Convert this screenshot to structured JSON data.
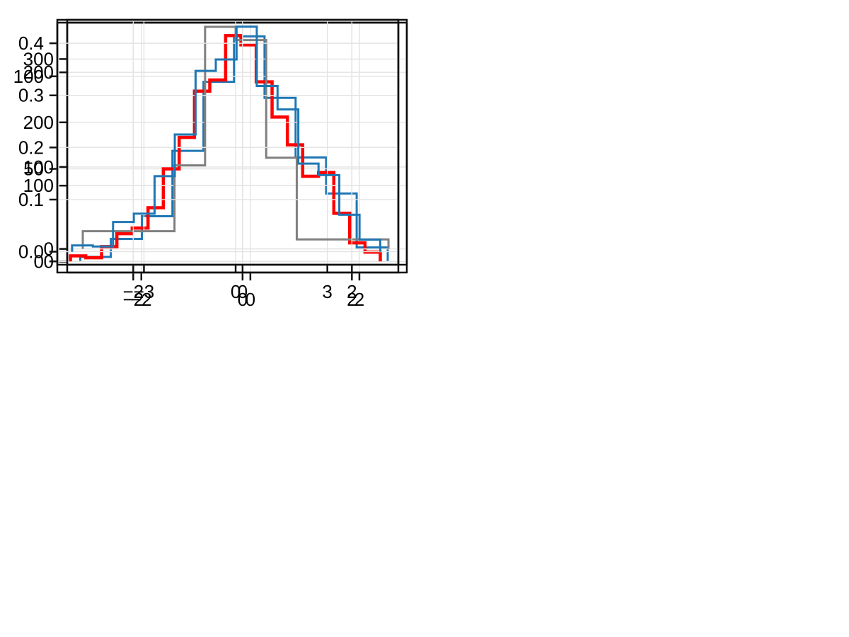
{
  "figure": {
    "background": "#ffffff",
    "grid_color": "#e3e3e3",
    "spine_color": "#0f0f0f",
    "tick_color": "#0f0f0f",
    "label_color": "#000000",
    "tick_font_size": 26
  },
  "chart_data": [
    {
      "type": "bar",
      "subtype": "step-histogram",
      "position": "top-left",
      "title": "",
      "xlabel": "",
      "ylabel": "",
      "color": "#1f77b4",
      "line_width": 3,
      "bin_edges": [
        -3.12,
        -2.56,
        -1.99,
        -1.43,
        -0.86,
        -0.3,
        0.26,
        0.83,
        1.39,
        1.95,
        2.52
      ],
      "values": [
        5,
        24,
        48,
        117,
        190,
        238,
        173,
        110,
        72,
        15
      ],
      "xlim": [
        -3.36,
        2.87
      ],
      "ylim": [
        -11.5,
        252.5
      ],
      "xticks": [
        -2,
        0,
        2
      ],
      "xtick_labels": [
        "−2",
        "0",
        "2"
      ],
      "yticks": [
        0,
        100,
        200
      ],
      "ytick_labels": [
        "0",
        "100",
        "200"
      ],
      "grid": true,
      "legend": null
    },
    {
      "type": "bar",
      "subtype": "step-histogram",
      "position": "top-right",
      "title": "",
      "xlabel": "",
      "ylabel": "",
      "color": "#ff0000",
      "line_width": 4.5,
      "bin_edges": [
        -3.15,
        -2.87,
        -2.58,
        -2.3,
        -2.02,
        -1.73,
        -1.45,
        -1.16,
        -0.88,
        -0.6,
        -0.31,
        -0.03,
        0.25,
        0.54,
        0.82,
        1.1,
        1.39,
        1.67,
        1.96,
        2.24,
        2.52
      ],
      "values": [
        3,
        2,
        8,
        15,
        18,
        29,
        50,
        67,
        92,
        98,
        122,
        117,
        97,
        78,
        63,
        46,
        48,
        26,
        10,
        5
      ],
      "xlim": [
        -3.39,
        2.85
      ],
      "ylim": [
        -6,
        129
      ],
      "xticks": [
        -2,
        0,
        2
      ],
      "xtick_labels": [
        "−2",
        "0",
        "2"
      ],
      "yticks": [
        0,
        50,
        100
      ],
      "ytick_labels": [
        "0",
        "50",
        "100"
      ],
      "grid": true,
      "legend": null
    },
    {
      "type": "bar",
      "subtype": "step-histogram",
      "position": "bottom-left",
      "title": "",
      "xlabel": "",
      "ylabel": "",
      "color": "#808080",
      "line_width": 3,
      "bin_edges": [
        -5.0,
        -2.0,
        -1.0,
        0.0,
        1.0,
        2.0,
        5.0
      ],
      "values": [
        28,
        132,
        351,
        330,
        144,
        15
      ],
      "xlim": [
        -5.51,
        5.6
      ],
      "ylim": [
        -25,
        362
      ],
      "xticks": [
        -3,
        0,
        3
      ],
      "xtick_labels": [
        "−3",
        "0",
        "3"
      ],
      "yticks": [
        0,
        100,
        200,
        300
      ],
      "ytick_labels": [
        "0",
        "100",
        "200",
        "300"
      ],
      "grid": true,
      "legend": null
    },
    {
      "type": "bar",
      "subtype": "step-histogram",
      "position": "bottom-right",
      "title": "",
      "xlabel": "",
      "ylabel": "",
      "color": "#1f77b4",
      "line_width": 3,
      "bin_edges": [
        -3.12,
        -2.74,
        -2.37,
        -1.99,
        -1.61,
        -1.24,
        -0.86,
        -0.49,
        -0.11,
        0.26,
        0.64,
        1.02,
        1.39,
        1.77,
        2.14,
        2.52
      ],
      "values": [
        0.012,
        0.01,
        0.057,
        0.073,
        0.145,
        0.225,
        0.347,
        0.369,
        0.432,
        0.318,
        0.273,
        0.169,
        0.147,
        0.071,
        0.023
      ],
      "xlim": [
        -3.39,
        2.85
      ],
      "ylim": [
        -0.025,
        0.445
      ],
      "xticks": [
        -2,
        0,
        2
      ],
      "xtick_labels": [
        "−2",
        "0",
        "2"
      ],
      "yticks": [
        0.0,
        0.1,
        0.2,
        0.3,
        0.4
      ],
      "ytick_labels": [
        "0.0",
        "0.1",
        "0.2",
        "0.3",
        "0.4"
      ],
      "grid": true,
      "legend": null
    }
  ]
}
